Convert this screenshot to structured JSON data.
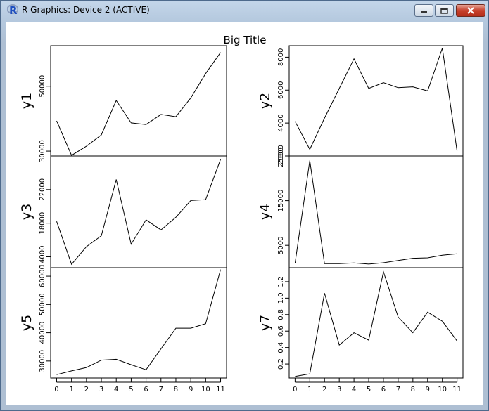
{
  "window": {
    "title": "R Graphics: Device 2 (ACTIVE)",
    "icons": {
      "app": "r-logo-icon",
      "minimize": "minimize-icon",
      "maximize": "maximize-icon",
      "close": "close-icon"
    },
    "colors": {
      "close_button": "#c6402b",
      "plot_background": "#ffffff"
    }
  },
  "chart_data": {
    "title": "Big Title",
    "type": "line",
    "layout": "3 rows x 2 columns",
    "x": [
      0,
      1,
      2,
      3,
      4,
      5,
      6,
      7,
      8,
      9,
      10,
      11
    ],
    "x_tick_labels": [
      "0",
      "1",
      "2",
      "3",
      "4",
      "5",
      "6",
      "7",
      "8",
      "9",
      "10",
      "11"
    ],
    "grid": false,
    "panels": [
      {
        "ylabel": "y1",
        "ylim": [
          28500,
          62500
        ],
        "yticks": [
          30000,
          50000
        ],
        "values": [
          39300,
          28700,
          31500,
          35000,
          45600,
          38700,
          38200,
          41300,
          40600,
          46400,
          53900,
          60400
        ]
      },
      {
        "ylabel": "y2",
        "ylim": [
          2000,
          8700
        ],
        "yticks": [
          2000,
          4000,
          6000,
          8000
        ],
        "values": [
          4100,
          2400,
          4300,
          6100,
          7900,
          6100,
          6450,
          6150,
          6200,
          5950,
          8550,
          2300
        ]
      },
      {
        "ylabel": "y3",
        "ylim": [
          12700,
          26000
        ],
        "yticks": [
          14000,
          18000,
          22000
        ],
        "values": [
          18200,
          13100,
          15200,
          16500,
          23200,
          15500,
          18400,
          17200,
          18700,
          20700,
          20800,
          25600
        ]
      },
      {
        "ylabel": "y4",
        "ylim": [
          0,
          25000
        ],
        "yticks": [
          5000,
          15000,
          25000
        ],
        "values": [
          1000,
          24000,
          900,
          900,
          1050,
          800,
          1100,
          1600,
          2100,
          2200,
          2800,
          3100
        ]
      },
      {
        "ylabel": "y5",
        "ylim": [
          24000,
          63000
        ],
        "yticks": [
          30000,
          40000,
          50000,
          60000
        ],
        "values": [
          25200,
          26500,
          27700,
          30300,
          30600,
          28700,
          26900,
          34300,
          41600,
          41600,
          43200,
          62300
        ]
      },
      {
        "ylabel": "y7",
        "ylim": [
          0.03,
          1.37
        ],
        "yticks": [
          0.2,
          0.4,
          0.6,
          0.8,
          1.0,
          1.2
        ],
        "ytick_labels": [
          "0.2",
          "0.4",
          "0.6",
          "0.8",
          "1.0",
          "1.2"
        ],
        "values": [
          0.05,
          0.08,
          1.06,
          0.43,
          0.58,
          0.49,
          1.32,
          0.77,
          0.58,
          0.83,
          0.72,
          0.48
        ]
      }
    ]
  }
}
